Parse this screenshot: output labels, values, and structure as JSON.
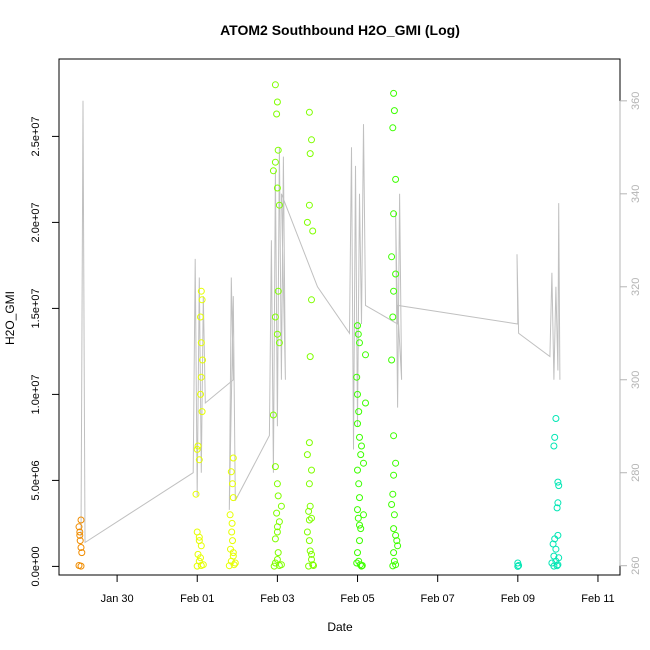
{
  "chart_data": {
    "type": "scatter",
    "title": "ATOM2 Southbound H2O_GMI (Log)",
    "xlabel": "Date",
    "ylabel": "H2O_GMI",
    "x_ticks": [
      "Jan 30",
      "Feb 01",
      "Feb 03",
      "Feb 05",
      "Feb 07",
      "Feb 09",
      "Feb 11"
    ],
    "x_tick_days": [
      0,
      2,
      4,
      6,
      8,
      10,
      12
    ],
    "xlim_days": [
      -1.45,
      12.55
    ],
    "y_ticks": [
      "0.0e+00",
      "5.0e+06",
      "1.0e+07",
      "1.5e+07",
      "2.0e+07",
      "2.5e+07"
    ],
    "y_tick_values": [
      0,
      5000000,
      10000000,
      15000000,
      20000000,
      25000000
    ],
    "ylim": [
      -500000,
      29500000
    ],
    "y2_ticks": [
      "260",
      "280",
      "300",
      "320",
      "340",
      "360"
    ],
    "y2_tick_values": [
      260,
      280,
      300,
      320,
      340,
      360
    ],
    "y2lim": [
      258,
      369
    ],
    "grid": false,
    "colors": {
      "line": "#c0c0c0",
      "frame": "#000000",
      "right_axis": "#b4b4b4"
    },
    "series": [
      {
        "color": "#f08c00",
        "points": [
          [
            -0.95,
            2300000
          ],
          [
            -0.93,
            2000000
          ],
          [
            -0.9,
            2700000
          ],
          [
            -0.92,
            1500000
          ],
          [
            -0.9,
            1100000
          ],
          [
            -0.88,
            800000
          ],
          [
            -0.95,
            50000
          ],
          [
            -0.9,
            20000
          ],
          [
            -0.93,
            1800000
          ]
        ]
      },
      {
        "color": "#e6ff00",
        "points": [
          [
            2.0,
            6800000
          ],
          [
            2.02,
            7000000
          ],
          [
            2.05,
            6200000
          ],
          [
            1.97,
            4200000
          ],
          [
            2.1,
            16000000
          ],
          [
            2.12,
            15500000
          ],
          [
            2.08,
            14500000
          ],
          [
            2.1,
            13000000
          ],
          [
            2.13,
            12000000
          ],
          [
            2.1,
            11000000
          ],
          [
            2.08,
            10000000
          ],
          [
            2.12,
            9000000
          ],
          [
            2.0,
            2000000
          ],
          [
            2.05,
            1700000
          ],
          [
            2.1,
            1200000
          ],
          [
            2.02,
            700000
          ],
          [
            2.05,
            300000
          ],
          [
            2.1,
            50000
          ],
          [
            2.0,
            20000
          ],
          [
            2.15,
            100000
          ],
          [
            2.08,
            500000
          ],
          [
            2.05,
            1500000
          ],
          [
            2.9,
            6300000
          ],
          [
            2.85,
            5500000
          ],
          [
            2.88,
            4800000
          ],
          [
            2.9,
            4000000
          ],
          [
            2.82,
            3000000
          ],
          [
            2.86,
            2000000
          ],
          [
            2.88,
            1500000
          ],
          [
            2.9,
            800000
          ],
          [
            2.85,
            300000
          ],
          [
            2.92,
            100000
          ],
          [
            2.8,
            40000
          ],
          [
            2.95,
            200000
          ],
          [
            2.87,
            2500000
          ],
          [
            2.9,
            600000
          ],
          [
            2.83,
            1000000
          ]
        ]
      },
      {
        "color": "#80ff00",
        "points": [
          [
            3.95,
            28000000
          ],
          [
            4.0,
            27000000
          ],
          [
            3.98,
            26300000
          ],
          [
            4.02,
            24200000
          ],
          [
            3.95,
            23500000
          ],
          [
            3.9,
            23000000
          ],
          [
            4.0,
            22000000
          ],
          [
            4.05,
            21000000
          ],
          [
            4.02,
            16000000
          ],
          [
            3.95,
            14500000
          ],
          [
            4.0,
            13500000
          ],
          [
            4.05,
            13000000
          ],
          [
            3.9,
            8800000
          ],
          [
            3.95,
            5800000
          ],
          [
            4.0,
            4800000
          ],
          [
            4.02,
            4100000
          ],
          [
            3.98,
            3100000
          ],
          [
            4.05,
            2600000
          ],
          [
            4.0,
            2000000
          ],
          [
            3.95,
            1600000
          ],
          [
            4.02,
            800000
          ],
          [
            4.0,
            400000
          ],
          [
            3.95,
            200000
          ],
          [
            4.05,
            50000
          ],
          [
            4.1,
            100000
          ],
          [
            3.92,
            20000
          ],
          [
            4.0,
            2300000
          ],
          [
            4.1,
            3500000
          ],
          [
            4.8,
            26400000
          ],
          [
            4.85,
            24800000
          ],
          [
            4.82,
            24000000
          ],
          [
            4.8,
            21000000
          ],
          [
            4.75,
            20000000
          ],
          [
            4.88,
            19500000
          ],
          [
            4.85,
            15500000
          ],
          [
            4.82,
            12200000
          ],
          [
            4.8,
            7200000
          ],
          [
            4.75,
            6500000
          ],
          [
            4.85,
            5600000
          ],
          [
            4.8,
            4800000
          ],
          [
            4.82,
            3500000
          ],
          [
            4.78,
            3200000
          ],
          [
            4.85,
            2800000
          ],
          [
            4.75,
            2000000
          ],
          [
            4.8,
            1500000
          ],
          [
            4.82,
            900000
          ],
          [
            4.85,
            400000
          ],
          [
            4.88,
            100000
          ],
          [
            4.9,
            50000
          ],
          [
            4.78,
            20000
          ],
          [
            4.8,
            2700000
          ],
          [
            4.85,
            700000
          ]
        ]
      },
      {
        "color": "#3dff00",
        "points": [
          [
            6.0,
            14000000
          ],
          [
            6.02,
            13500000
          ],
          [
            6.05,
            13000000
          ],
          [
            5.98,
            11000000
          ],
          [
            6.0,
            10000000
          ],
          [
            6.03,
            9000000
          ],
          [
            6.0,
            8300000
          ],
          [
            6.05,
            7500000
          ],
          [
            6.1,
            7000000
          ],
          [
            6.08,
            6500000
          ],
          [
            6.0,
            5600000
          ],
          [
            6.03,
            4800000
          ],
          [
            6.05,
            4000000
          ],
          [
            6.0,
            3300000
          ],
          [
            6.02,
            2800000
          ],
          [
            6.08,
            2200000
          ],
          [
            6.05,
            1500000
          ],
          [
            6.0,
            800000
          ],
          [
            6.03,
            300000
          ],
          [
            6.07,
            100000
          ],
          [
            6.1,
            20000
          ],
          [
            6.12,
            50000
          ],
          [
            6.2,
            12300000
          ],
          [
            6.2,
            9500000
          ],
          [
            6.15,
            6000000
          ],
          [
            6.15,
            3000000
          ],
          [
            5.98,
            200000
          ],
          [
            6.05,
            2400000
          ],
          [
            6.9,
            27500000
          ],
          [
            6.92,
            26500000
          ],
          [
            6.88,
            25500000
          ],
          [
            6.95,
            22500000
          ],
          [
            6.9,
            20500000
          ],
          [
            6.85,
            18000000
          ],
          [
            6.95,
            17000000
          ],
          [
            6.9,
            16000000
          ],
          [
            6.88,
            14500000
          ],
          [
            6.85,
            12000000
          ],
          [
            6.9,
            7600000
          ],
          [
            6.95,
            6000000
          ],
          [
            6.9,
            5300000
          ],
          [
            6.88,
            4200000
          ],
          [
            6.85,
            3600000
          ],
          [
            6.92,
            3000000
          ],
          [
            6.9,
            2200000
          ],
          [
            6.95,
            1800000
          ],
          [
            7.0,
            1200000
          ],
          [
            6.9,
            800000
          ],
          [
            6.92,
            300000
          ],
          [
            6.95,
            100000
          ],
          [
            6.88,
            30000
          ],
          [
            6.98,
            1500000
          ]
        ]
      },
      {
        "color": "#00e6b4",
        "points": [
          [
            10.0,
            200000
          ],
          [
            10.02,
            50000
          ],
          [
            10.0,
            0
          ],
          [
            10.95,
            8600000
          ],
          [
            10.92,
            7500000
          ],
          [
            10.9,
            7000000
          ],
          [
            11.0,
            4900000
          ],
          [
            11.02,
            4700000
          ],
          [
            11.0,
            3700000
          ],
          [
            10.98,
            3400000
          ],
          [
            11.0,
            1800000
          ],
          [
            10.92,
            1600000
          ],
          [
            10.95,
            1000000
          ],
          [
            10.9,
            600000
          ],
          [
            10.95,
            300000
          ],
          [
            11.0,
            100000
          ],
          [
            10.98,
            40000
          ],
          [
            10.9,
            20000
          ],
          [
            10.85,
            200000
          ],
          [
            11.02,
            500000
          ],
          [
            10.88,
            1300000
          ]
        ]
      }
    ],
    "line": [
      [
        -0.9,
        266
      ],
      [
        -0.85,
        360
      ],
      [
        -0.8,
        265
      ],
      [
        1.9,
        280
      ],
      [
        1.95,
        326
      ],
      [
        2.0,
        275
      ],
      [
        2.05,
        322
      ],
      [
        2.1,
        280
      ],
      [
        2.15,
        318
      ],
      [
        2.2,
        295
      ],
      [
        2.9,
        300
      ],
      [
        2.85,
        322
      ],
      [
        2.8,
        272
      ],
      [
        2.9,
        318
      ],
      [
        2.95,
        274
      ],
      [
        3.8,
        288
      ],
      [
        3.85,
        330
      ],
      [
        3.9,
        280
      ],
      [
        3.95,
        345
      ],
      [
        4.0,
        290
      ],
      [
        4.05,
        350
      ],
      [
        4.1,
        300
      ],
      [
        4.15,
        348
      ],
      [
        4.2,
        300
      ],
      [
        4.1,
        340
      ],
      [
        5.0,
        320
      ],
      [
        5.8,
        310
      ],
      [
        5.85,
        350
      ],
      [
        5.9,
        285
      ],
      [
        5.95,
        346
      ],
      [
        6.0,
        290
      ],
      [
        6.05,
        340
      ],
      [
        6.1,
        312
      ],
      [
        6.15,
        355
      ],
      [
        6.2,
        316
      ],
      [
        7.0,
        312
      ],
      [
        6.95,
        336
      ],
      [
        7.0,
        294
      ],
      [
        7.05,
        340
      ],
      [
        7.1,
        300
      ],
      [
        7.0,
        316
      ],
      [
        10.0,
        312
      ],
      [
        9.98,
        327
      ],
      [
        10.02,
        310
      ],
      [
        10.8,
        305
      ],
      [
        10.85,
        323
      ],
      [
        10.9,
        300
      ],
      [
        10.95,
        320
      ],
      [
        11.0,
        302
      ],
      [
        11.02,
        338
      ],
      [
        11.05,
        300
      ]
    ]
  }
}
